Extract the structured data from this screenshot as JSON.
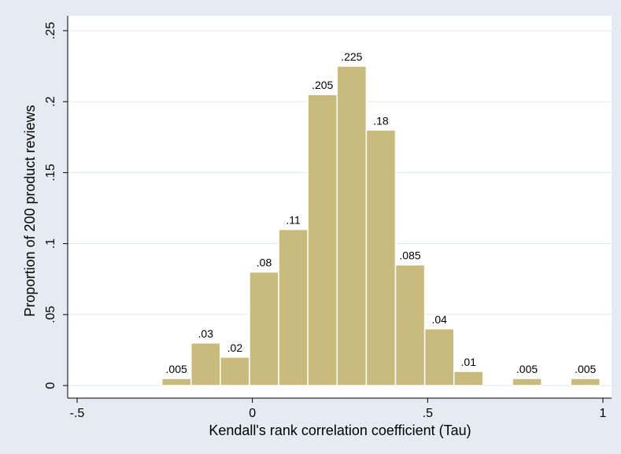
{
  "chart_data": {
    "type": "bar",
    "title": "",
    "xlabel": "Kendall's rank correlation coefficient (Tau)",
    "ylabel": "Proportion of 200 product reviews",
    "xlim": [
      -0.5,
      1
    ],
    "ylim": [
      0,
      0.25
    ],
    "grid": true,
    "bin_width": 0.0833,
    "x_ticks": [
      {
        "value": -0.5,
        "label": "-.5"
      },
      {
        "value": 0,
        "label": "0"
      },
      {
        "value": 0.5,
        "label": ".5"
      },
      {
        "value": 1,
        "label": "1"
      }
    ],
    "y_ticks": [
      {
        "value": 0,
        "label": "0"
      },
      {
        "value": 0.05,
        "label": ".05"
      },
      {
        "value": 0.1,
        "label": ".1"
      },
      {
        "value": 0.15,
        "label": ".15"
      },
      {
        "value": 0.2,
        "label": ".2"
      },
      {
        "value": 0.25,
        "label": ".25"
      }
    ],
    "bins": [
      {
        "start": -0.2583,
        "value": 0.005,
        "label": ".005"
      },
      {
        "start": -0.175,
        "value": 0.03,
        "label": ".03"
      },
      {
        "start": -0.0917,
        "value": 0.02,
        "label": ".02"
      },
      {
        "start": -0.0083,
        "value": 0.08,
        "label": ".08"
      },
      {
        "start": 0.075,
        "value": 0.11,
        "label": ".11"
      },
      {
        "start": 0.1583,
        "value": 0.205,
        "label": ".205"
      },
      {
        "start": 0.2417,
        "value": 0.225,
        "label": ".225"
      },
      {
        "start": 0.325,
        "value": 0.18,
        "label": ".18"
      },
      {
        "start": 0.4083,
        "value": 0.085,
        "label": ".085"
      },
      {
        "start": 0.4917,
        "value": 0.04,
        "label": ".04"
      },
      {
        "start": 0.575,
        "value": 0.01,
        "label": ".01"
      },
      {
        "start": 0.7417,
        "value": 0.005,
        "label": ".005"
      },
      {
        "start": 0.9083,
        "value": 0.005,
        "label": ".005"
      }
    ],
    "colors": {
      "background": "#e5eaf3",
      "plot_area": "#ffffff",
      "bar_fill": "#c8bb7d",
      "bar_edge": "#ffffff",
      "grid": "#e5eaf3"
    }
  }
}
